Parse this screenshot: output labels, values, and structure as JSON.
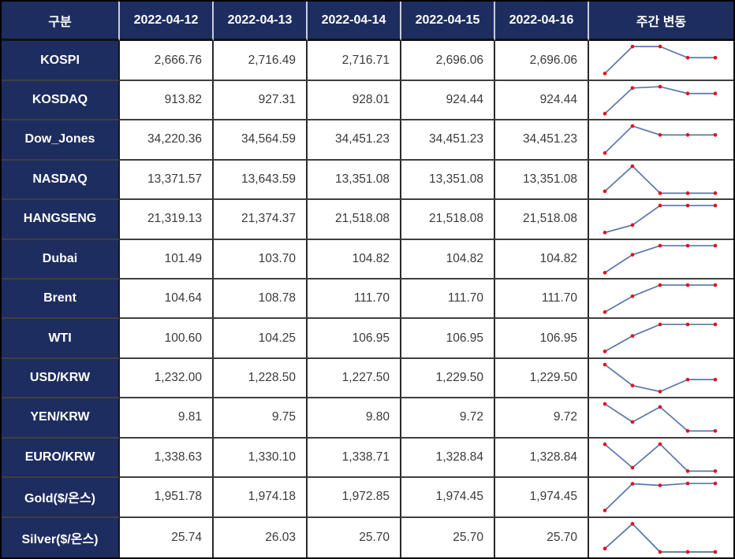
{
  "table": {
    "header": {
      "category_label": "구분",
      "dates": [
        "2022-04-12",
        "2022-04-13",
        "2022-04-14",
        "2022-04-15",
        "2022-04-16"
      ],
      "weekly_change_label": "주간 변동"
    },
    "rows": [
      {
        "label": "KOSPI",
        "values": [
          "2,666.76",
          "2,716.49",
          "2,716.71",
          "2,696.06",
          "2,696.06"
        ]
      },
      {
        "label": "KOSDAQ",
        "values": [
          "913.82",
          "927.31",
          "928.01",
          "924.44",
          "924.44"
        ]
      },
      {
        "label": "Dow_Jones",
        "values": [
          "34,220.36",
          "34,564.59",
          "34,451.23",
          "34,451.23",
          "34,451.23"
        ]
      },
      {
        "label": "NASDAQ",
        "values": [
          "13,371.57",
          "13,643.59",
          "13,351.08",
          "13,351.08",
          "13,351.08"
        ]
      },
      {
        "label": "HANGSENG",
        "values": [
          "21,319.13",
          "21,374.37",
          "21,518.08",
          "21,518.08",
          "21,518.08"
        ]
      },
      {
        "label": "Dubai",
        "values": [
          "101.49",
          "103.70",
          "104.82",
          "104.82",
          "104.82"
        ]
      },
      {
        "label": "Brent",
        "values": [
          "104.64",
          "108.78",
          "111.70",
          "111.70",
          "111.70"
        ]
      },
      {
        "label": "WTI",
        "values": [
          "100.60",
          "104.25",
          "106.95",
          "106.95",
          "106.95"
        ]
      },
      {
        "label": "USD/KRW",
        "values": [
          "1,232.00",
          "1,228.50",
          "1,227.50",
          "1,229.50",
          "1,229.50"
        ]
      },
      {
        "label": "YEN/KRW",
        "values": [
          "9.81",
          "9.75",
          "9.80",
          "9.72",
          "9.72"
        ]
      },
      {
        "label": "EURO/KRW",
        "values": [
          "1,338.63",
          "1,330.10",
          "1,338.71",
          "1,328.84",
          "1,328.84"
        ]
      },
      {
        "label": "Gold($/온스)",
        "values": [
          "1,951.78",
          "1,974.18",
          "1,972.85",
          "1,974.45",
          "1,974.45"
        ]
      },
      {
        "label": "Silver($/온스)",
        "values": [
          "25.74",
          "26.03",
          "25.70",
          "25.70",
          "25.70"
        ]
      }
    ]
  },
  "chart_data": {
    "type": "table",
    "title": "",
    "columns": [
      "구분",
      "2022-04-12",
      "2022-04-13",
      "2022-04-14",
      "2022-04-15",
      "2022-04-16",
      "주간 변동"
    ],
    "x": [
      "2022-04-12",
      "2022-04-13",
      "2022-04-14",
      "2022-04-15",
      "2022-04-16"
    ],
    "series": [
      {
        "name": "KOSPI",
        "values": [
          2666.76,
          2716.49,
          2716.71,
          2696.06,
          2696.06
        ]
      },
      {
        "name": "KOSDAQ",
        "values": [
          913.82,
          927.31,
          928.01,
          924.44,
          924.44
        ]
      },
      {
        "name": "Dow_Jones",
        "values": [
          34220.36,
          34564.59,
          34451.23,
          34451.23,
          34451.23
        ]
      },
      {
        "name": "NASDAQ",
        "values": [
          13371.57,
          13643.59,
          13351.08,
          13351.08,
          13351.08
        ]
      },
      {
        "name": "HANGSENG",
        "values": [
          21319.13,
          21374.37,
          21518.08,
          21518.08,
          21518.08
        ]
      },
      {
        "name": "Dubai",
        "values": [
          101.49,
          103.7,
          104.82,
          104.82,
          104.82
        ]
      },
      {
        "name": "Brent",
        "values": [
          104.64,
          108.78,
          111.7,
          111.7,
          111.7
        ]
      },
      {
        "name": "WTI",
        "values": [
          100.6,
          104.25,
          106.95,
          106.95,
          106.95
        ]
      },
      {
        "name": "USD/KRW",
        "values": [
          1232.0,
          1228.5,
          1227.5,
          1229.5,
          1229.5
        ]
      },
      {
        "name": "YEN/KRW",
        "values": [
          9.81,
          9.75,
          9.8,
          9.72,
          9.72
        ]
      },
      {
        "name": "EURO/KRW",
        "values": [
          1338.63,
          1330.1,
          1338.71,
          1328.84,
          1328.84
        ]
      },
      {
        "name": "Gold($/온스)",
        "values": [
          1951.78,
          1974.18,
          1972.85,
          1974.45,
          1974.45
        ]
      },
      {
        "name": "Silver($/온스)",
        "values": [
          25.74,
          26.03,
          25.7,
          25.7,
          25.7
        ]
      }
    ],
    "sparkline_style": {
      "type": "line",
      "scaling": "min-max per row",
      "line_color": "#5a77a8",
      "marker_color": "#e0101d"
    }
  },
  "colors": {
    "header_bg": "#1e2d5f",
    "header_text": "#ffffff",
    "cell_text": "#3a3a3a",
    "grid_line": "#3f3f3f",
    "sparkline_line": "#5a77a8",
    "sparkline_marker": "#e0101d"
  }
}
